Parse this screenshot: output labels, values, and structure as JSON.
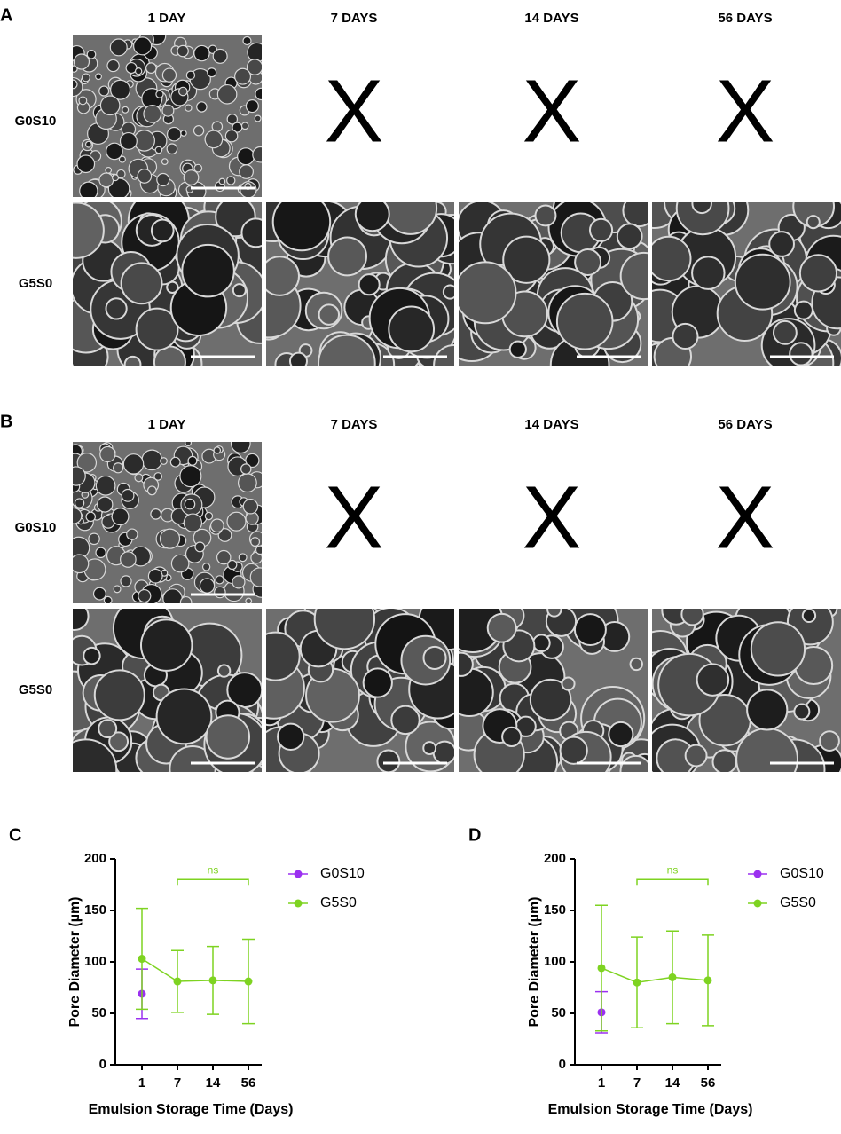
{
  "panels": [
    {
      "label": "A",
      "columns": [
        "1 DAY",
        "7 DAYS",
        "14 DAYS",
        "56 DAYS"
      ],
      "rows": [
        "G0S10",
        "G5S0"
      ],
      "missing": [
        "X",
        "X",
        "X"
      ]
    },
    {
      "label": "B",
      "columns": [
        "1 DAY",
        "7 DAYS",
        "14 DAYS",
        "56 DAYS"
      ],
      "rows": [
        "G0S10",
        "G5S0"
      ],
      "missing": [
        "X",
        "X",
        "X"
      ]
    }
  ],
  "chart_data": [
    {
      "type": "line",
      "label": "C",
      "ylabel": "Pore Diameter (µm)",
      "xlabel": "Emulsion Storage Time (Days)",
      "categories": [
        "1",
        "7",
        "14",
        "56"
      ],
      "ylim": [
        0,
        200
      ],
      "yticks": [
        0,
        50,
        100,
        150,
        200
      ],
      "series": [
        {
          "name": "G0S10",
          "color": "#9b30f0",
          "values": [
            69,
            null,
            null,
            null
          ],
          "errors": [
            24,
            null,
            null,
            null
          ]
        },
        {
          "name": "G5S0",
          "color": "#7ed321",
          "values": [
            103,
            81,
            82,
            81
          ],
          "errors": [
            49,
            30,
            33,
            41
          ]
        }
      ],
      "annotation": {
        "text": "ns",
        "y": 180,
        "x": [
          "7",
          "56"
        ]
      }
    },
    {
      "type": "line",
      "label": "D",
      "ylabel": "Pore Diameter (µm)",
      "xlabel": "Emulsion Storage Time (Days)",
      "categories": [
        "1",
        "7",
        "14",
        "56"
      ],
      "ylim": [
        0,
        200
      ],
      "yticks": [
        0,
        50,
        100,
        150,
        200
      ],
      "series": [
        {
          "name": "G0S10",
          "color": "#9b30f0",
          "values": [
            51,
            null,
            null,
            null
          ],
          "errors": [
            20,
            null,
            null,
            null
          ]
        },
        {
          "name": "G5S0",
          "color": "#7ed321",
          "values": [
            94,
            80,
            85,
            82
          ],
          "errors": [
            61,
            44,
            45,
            44
          ]
        }
      ],
      "annotation": {
        "text": "ns",
        "y": 180,
        "x": [
          "7",
          "56"
        ]
      }
    }
  ]
}
